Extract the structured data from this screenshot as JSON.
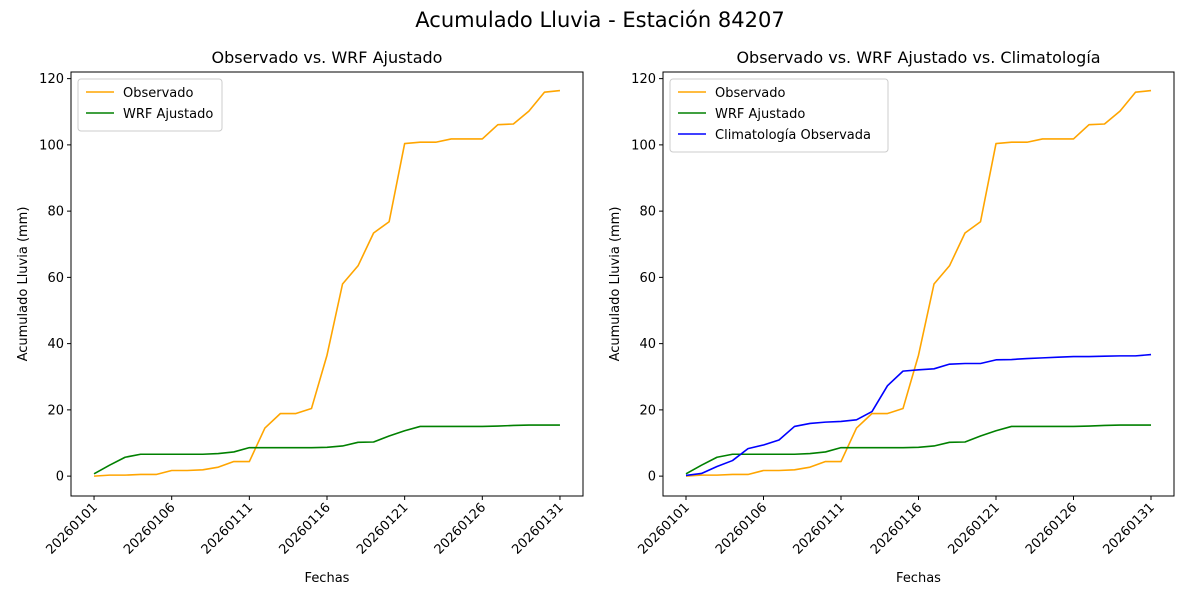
{
  "figure": {
    "suptitle": "Acumulado Lluvia - Estación 84207"
  },
  "chart_data": [
    {
      "type": "line",
      "title": "Observado vs. WRF Ajustado",
      "xlabel": "Fechas",
      "ylabel": "Acumulado Lluvia (mm)",
      "ylim": [
        -6,
        122
      ],
      "yticks": [
        0,
        20,
        40,
        60,
        80,
        100,
        120
      ],
      "xticks": [
        "20260101",
        "20260106",
        "20260111",
        "20260116",
        "20260121",
        "20260126",
        "20260131"
      ],
      "grid": false,
      "legend_position": "top-left",
      "x": [
        "20260101",
        "20260102",
        "20260103",
        "20260104",
        "20260105",
        "20260106",
        "20260107",
        "20260108",
        "20260109",
        "20260110",
        "20260111",
        "20260112",
        "20260113",
        "20260114",
        "20260115",
        "20260116",
        "20260117",
        "20260118",
        "20260119",
        "20260120",
        "20260121",
        "20260122",
        "20260123",
        "20260124",
        "20260125",
        "20260126",
        "20260127",
        "20260128",
        "20260129",
        "20260130",
        "20260131"
      ],
      "series": [
        {
          "name": "Observado",
          "color": "#ffa500",
          "values": [
            0.0,
            0.3,
            0.3,
            0.5,
            0.5,
            1.7,
            1.7,
            1.9,
            2.7,
            4.4,
            4.4,
            14.5,
            18.9,
            18.9,
            20.4,
            36.5,
            58.0,
            63.5,
            73.4,
            76.8,
            100.4,
            100.8,
            100.8,
            101.8,
            101.8,
            101.8,
            106.1,
            106.3,
            110.2,
            115.9,
            116.4
          ]
        },
        {
          "name": "WRF Ajustado",
          "color": "#008000",
          "values": [
            0.7,
            3.3,
            5.7,
            6.6,
            6.6,
            6.6,
            6.6,
            6.6,
            6.8,
            7.3,
            8.6,
            8.6,
            8.6,
            8.6,
            8.6,
            8.7,
            9.1,
            10.2,
            10.3,
            12.1,
            13.7,
            15.0,
            15.0,
            15.0,
            15.0,
            15.0,
            15.1,
            15.3,
            15.4,
            15.4,
            15.4
          ]
        }
      ]
    },
    {
      "type": "line",
      "title": "Observado vs. WRF Ajustado vs. Climatología",
      "xlabel": "Fechas",
      "ylabel": "Acumulado Lluvia (mm)",
      "ylim": [
        -6,
        122
      ],
      "yticks": [
        0,
        20,
        40,
        60,
        80,
        100,
        120
      ],
      "xticks": [
        "20260101",
        "20260106",
        "20260111",
        "20260116",
        "20260121",
        "20260126",
        "20260131"
      ],
      "grid": false,
      "legend_position": "top-left",
      "x": [
        "20260101",
        "20260102",
        "20260103",
        "20260104",
        "20260105",
        "20260106",
        "20260107",
        "20260108",
        "20260109",
        "20260110",
        "20260111",
        "20260112",
        "20260113",
        "20260114",
        "20260115",
        "20260116",
        "20260117",
        "20260118",
        "20260119",
        "20260120",
        "20260121",
        "20260122",
        "20260123",
        "20260124",
        "20260125",
        "20260126",
        "20260127",
        "20260128",
        "20260129",
        "20260130",
        "20260131"
      ],
      "series": [
        {
          "name": "Observado",
          "color": "#ffa500",
          "values": [
            0.0,
            0.3,
            0.3,
            0.5,
            0.5,
            1.7,
            1.7,
            1.9,
            2.7,
            4.4,
            4.4,
            14.5,
            18.9,
            18.9,
            20.4,
            36.5,
            58.0,
            63.5,
            73.4,
            76.8,
            100.4,
            100.8,
            100.8,
            101.8,
            101.8,
            101.8,
            106.1,
            106.3,
            110.2,
            115.9,
            116.4
          ]
        },
        {
          "name": "WRF Ajustado",
          "color": "#008000",
          "values": [
            0.7,
            3.3,
            5.7,
            6.6,
            6.6,
            6.6,
            6.6,
            6.6,
            6.8,
            7.3,
            8.6,
            8.6,
            8.6,
            8.6,
            8.6,
            8.7,
            9.1,
            10.2,
            10.3,
            12.1,
            13.7,
            15.0,
            15.0,
            15.0,
            15.0,
            15.0,
            15.1,
            15.3,
            15.4,
            15.4,
            15.4
          ]
        },
        {
          "name": "Climatología Observada",
          "color": "#0000ff",
          "values": [
            0.2,
            0.8,
            2.9,
            4.7,
            8.3,
            9.4,
            10.9,
            15.0,
            15.9,
            16.3,
            16.5,
            17.0,
            19.5,
            27.3,
            31.7,
            32.1,
            32.4,
            33.8,
            34.0,
            34.0,
            35.1,
            35.2,
            35.5,
            35.7,
            35.9,
            36.1,
            36.1,
            36.2,
            36.3,
            36.3,
            36.7
          ]
        }
      ]
    }
  ]
}
